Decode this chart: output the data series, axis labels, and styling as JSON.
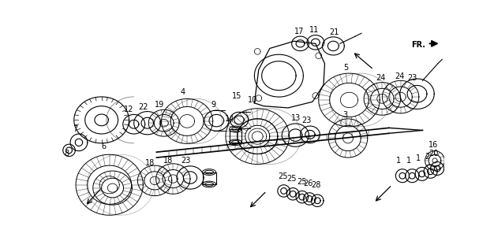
{
  "bg_color": "#ffffff",
  "fig_width": 6.26,
  "fig_height": 3.2,
  "dpi": 100
}
